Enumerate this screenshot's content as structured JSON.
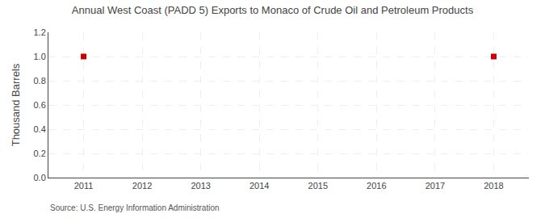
{
  "chart_data": {
    "type": "scatter",
    "title": "Annual West Coast (PADD 5) Exports to Monaco of Crude Oil and Petroleum Products",
    "y_label": "Thousand Barrels",
    "annotations": [
      "Source: U.S. Energy Information Administration"
    ],
    "x": [
      2011,
      2018
    ],
    "values": [
      1.0,
      1.0
    ],
    "color": "#CC0000",
    "marker": "square",
    "xlim": [
      2010.4,
      2018.6
    ],
    "xticks": [
      2011,
      2012,
      2013,
      2014,
      2015,
      2016,
      2017,
      2018
    ],
    "ylim": [
      0.0,
      1.2
    ],
    "yticks": [
      {
        "value": 0.0,
        "label": "0.0"
      },
      0.2,
      0.4,
      0.6,
      0.8,
      {
        "value": 1.0,
        "label": "1.0"
      },
      1.2
    ],
    "grid": true
  }
}
